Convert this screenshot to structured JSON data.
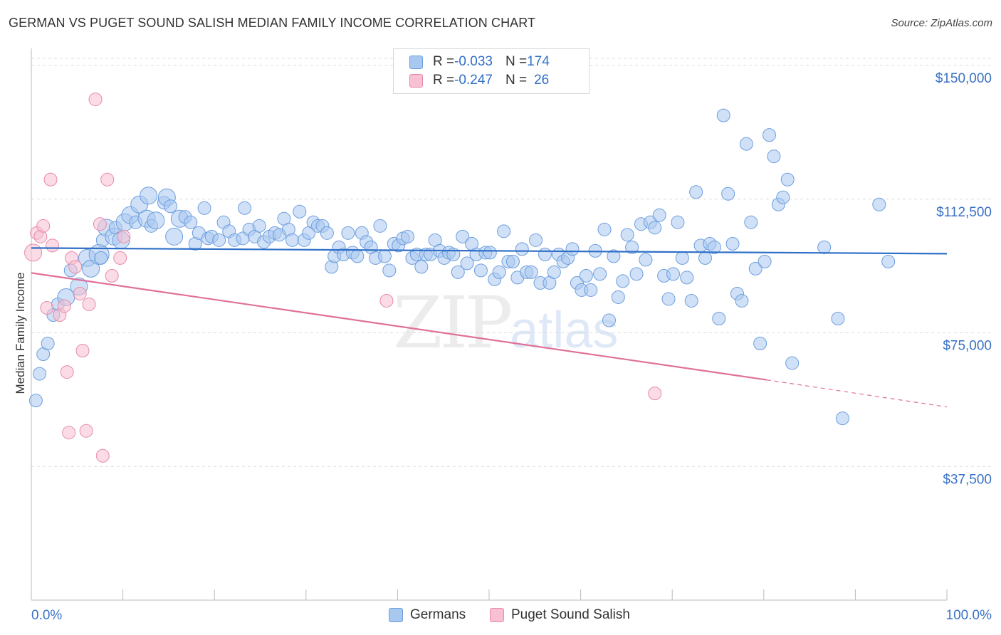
{
  "title": "GERMAN VS PUGET SOUND SALISH MEDIAN FAMILY INCOME CORRELATION CHART",
  "source": "Source: ZipAtlas.com",
  "watermark": {
    "zip": "ZIP",
    "atlas": "atlas"
  },
  "legend": {
    "rows": [
      {
        "r_label": "R = ",
        "r_value": "-0.033",
        "n_label": "N = ",
        "n_value": "174",
        "color": "#a9c8f0",
        "border": "#6d9ede"
      },
      {
        "r_label": "R = ",
        "r_value": "-0.247",
        "n_label": "N = ",
        "n_value": "26",
        "color": "#f8c0d2",
        "border": "#e68aa8"
      }
    ]
  },
  "bottom_legend": [
    {
      "label": "Germans",
      "color": "#a9c8f0",
      "border": "#6d9ede"
    },
    {
      "label": "Puget Sound Salish",
      "color": "#f8c0d2",
      "border": "#e68aa8"
    }
  ],
  "chart_data": {
    "type": "scatter",
    "title": "GERMAN VS PUGET SOUND SALISH MEDIAN FAMILY INCOME CORRELATION CHART",
    "xlabel": "",
    "ylabel": "Median Family Income",
    "xlim": [
      0,
      100
    ],
    "ylim": [
      0,
      153000
    ],
    "x_tick_labels": [
      "0.0%",
      "100.0%"
    ],
    "y_ticks": [
      37500,
      75000,
      112500,
      150000
    ],
    "y_tick_labels": [
      "$37,500",
      "$75,000",
      "$112,500",
      "$150,000"
    ],
    "grid": true,
    "legend_position": "top-center",
    "series": [
      {
        "name": "Germans",
        "color": "#6d9ede",
        "fill": "#a9c8f0",
        "trend": {
          "x": [
            0,
            100
          ],
          "y": [
            98800,
            97200
          ],
          "color": "#2f6fc7"
        },
        "points": [
          [
            0.5,
            56000,
            2
          ],
          [
            0.9,
            63500,
            2
          ],
          [
            1.3,
            69000,
            2
          ],
          [
            1.8,
            72000,
            2
          ],
          [
            2.4,
            80000,
            2
          ],
          [
            2.9,
            83000,
            2
          ],
          [
            3.8,
            85000,
            3
          ],
          [
            4.3,
            92500,
            2
          ],
          [
            5.2,
            88000,
            3
          ],
          [
            6.1,
            96000,
            3
          ],
          [
            6.5,
            93000,
            3
          ],
          [
            7.4,
            97000,
            4
          ],
          [
            7.6,
            96000,
            2
          ],
          [
            7.8,
            101000,
            2
          ],
          [
            8.2,
            104500,
            3
          ],
          [
            9.0,
            102000,
            3
          ],
          [
            9.2,
            104500,
            2
          ],
          [
            9.8,
            101000,
            3
          ],
          [
            10.2,
            106000,
            3
          ],
          [
            10.8,
            108000,
            3
          ],
          [
            11.4,
            106000,
            2
          ],
          [
            11.8,
            111000,
            3
          ],
          [
            12.6,
            107000,
            3
          ],
          [
            12.8,
            113500,
            3
          ],
          [
            13.1,
            105000,
            2
          ],
          [
            13.6,
            106500,
            3
          ],
          [
            14.5,
            111500,
            2
          ],
          [
            14.8,
            113000,
            3
          ],
          [
            15.2,
            110500,
            2
          ],
          [
            15.6,
            102000,
            3
          ],
          [
            16.2,
            107000,
            3
          ],
          [
            16.8,
            107500,
            2
          ],
          [
            17.4,
            106000,
            2
          ],
          [
            17.9,
            100000,
            2
          ],
          [
            18.3,
            103000,
            2
          ],
          [
            18.9,
            110000,
            2
          ],
          [
            19.3,
            101500,
            2
          ],
          [
            19.7,
            102000,
            2
          ],
          [
            20.5,
            101000,
            2
          ],
          [
            21.0,
            106000,
            2
          ],
          [
            21.6,
            103500,
            2
          ],
          [
            22.2,
            101000,
            2
          ],
          [
            23.1,
            101500,
            2
          ],
          [
            23.3,
            110000,
            2
          ],
          [
            23.8,
            104000,
            2
          ],
          [
            24.4,
            102000,
            2
          ],
          [
            24.9,
            105000,
            2
          ],
          [
            25.4,
            100500,
            2
          ],
          [
            26.0,
            102000,
            2
          ],
          [
            26.6,
            103000,
            2
          ],
          [
            27.1,
            102500,
            2
          ],
          [
            27.6,
            107000,
            2
          ],
          [
            28.1,
            104000,
            2
          ],
          [
            28.5,
            101000,
            2
          ],
          [
            29.3,
            109000,
            2
          ],
          [
            29.8,
            101000,
            2
          ],
          [
            30.3,
            103000,
            2
          ],
          [
            30.8,
            106000,
            2
          ],
          [
            31.3,
            105000,
            2
          ],
          [
            31.8,
            105000,
            2
          ],
          [
            32.3,
            103000,
            2
          ],
          [
            32.8,
            93500,
            2
          ],
          [
            33.1,
            96500,
            2
          ],
          [
            33.6,
            99000,
            2
          ],
          [
            34.1,
            97000,
            2
          ],
          [
            34.6,
            103000,
            2
          ],
          [
            35.1,
            97500,
            2
          ],
          [
            35.6,
            96500,
            2
          ],
          [
            36.1,
            103000,
            2
          ],
          [
            36.6,
            100500,
            2
          ],
          [
            37.1,
            99000,
            2
          ],
          [
            37.6,
            96000,
            2
          ],
          [
            38.1,
            105000,
            2
          ],
          [
            38.6,
            96500,
            2
          ],
          [
            39.1,
            92500,
            2
          ],
          [
            39.6,
            100000,
            2
          ],
          [
            40.1,
            99500,
            2
          ],
          [
            40.6,
            101500,
            2
          ],
          [
            41.1,
            102000,
            2
          ],
          [
            41.6,
            96000,
            2
          ],
          [
            42.1,
            97000,
            2
          ],
          [
            42.6,
            93500,
            2
          ],
          [
            43.1,
            97000,
            2
          ],
          [
            43.6,
            97000,
            2
          ],
          [
            44.1,
            101000,
            2
          ],
          [
            44.6,
            98000,
            2
          ],
          [
            45.1,
            96000,
            2
          ],
          [
            45.6,
            97500,
            2
          ],
          [
            46.1,
            97000,
            2
          ],
          [
            46.6,
            92000,
            2
          ],
          [
            47.1,
            102000,
            2
          ],
          [
            47.6,
            94500,
            2
          ],
          [
            48.1,
            100000,
            2
          ],
          [
            48.6,
            97000,
            2
          ],
          [
            49.1,
            92500,
            2
          ],
          [
            49.6,
            97500,
            2
          ],
          [
            50.1,
            97500,
            2
          ],
          [
            50.6,
            90000,
            2
          ],
          [
            51.1,
            92000,
            2
          ],
          [
            51.6,
            103500,
            2
          ],
          [
            52.1,
            95000,
            2
          ],
          [
            52.6,
            95000,
            2
          ],
          [
            53.1,
            90500,
            2
          ],
          [
            53.6,
            98500,
            2
          ],
          [
            54.1,
            92000,
            2
          ],
          [
            54.6,
            92000,
            2
          ],
          [
            55.1,
            101000,
            2
          ],
          [
            55.6,
            89000,
            2
          ],
          [
            56.1,
            97000,
            2
          ],
          [
            56.6,
            89000,
            2
          ],
          [
            57.1,
            92000,
            2
          ],
          [
            57.6,
            97000,
            2
          ],
          [
            58.1,
            95000,
            2
          ],
          [
            58.6,
            96000,
            2
          ],
          [
            59.1,
            98500,
            2
          ],
          [
            59.6,
            89000,
            2
          ],
          [
            60.1,
            87000,
            2
          ],
          [
            60.6,
            91000,
            2
          ],
          [
            61.1,
            87000,
            2
          ],
          [
            61.6,
            98000,
            2
          ],
          [
            62.1,
            91500,
            2
          ],
          [
            62.6,
            104000,
            2
          ],
          [
            63.1,
            78500,
            2
          ],
          [
            63.6,
            96500,
            2
          ],
          [
            64.1,
            85000,
            2
          ],
          [
            64.6,
            89500,
            2
          ],
          [
            65.1,
            102500,
            2
          ],
          [
            65.6,
            99000,
            2
          ],
          [
            66.1,
            91500,
            2
          ],
          [
            66.6,
            105500,
            2
          ],
          [
            67.1,
            95500,
            2
          ],
          [
            67.6,
            106000,
            2
          ],
          [
            68.1,
            104500,
            2
          ],
          [
            68.6,
            108000,
            2
          ],
          [
            69.1,
            91000,
            2
          ],
          [
            69.6,
            84500,
            2
          ],
          [
            70.1,
            91500,
            2
          ],
          [
            70.6,
            106000,
            2
          ],
          [
            71.1,
            96000,
            2
          ],
          [
            71.6,
            90500,
            2
          ],
          [
            72.1,
            84000,
            2
          ],
          [
            72.6,
            114500,
            2
          ],
          [
            73.1,
            99500,
            2
          ],
          [
            73.6,
            96000,
            2
          ],
          [
            74.1,
            100000,
            2
          ],
          [
            74.6,
            99000,
            2
          ],
          [
            75.1,
            79000,
            2
          ],
          [
            75.6,
            136000,
            2
          ],
          [
            76.1,
            114000,
            2
          ],
          [
            76.6,
            100000,
            2
          ],
          [
            77.1,
            86000,
            2
          ],
          [
            77.6,
            84000,
            2
          ],
          [
            78.1,
            128000,
            2
          ],
          [
            78.6,
            106000,
            2
          ],
          [
            79.1,
            93000,
            2
          ],
          [
            79.6,
            72000,
            2
          ],
          [
            80.1,
            95000,
            2
          ],
          [
            80.6,
            130500,
            2
          ],
          [
            81.1,
            124500,
            2
          ],
          [
            81.6,
            111000,
            2
          ],
          [
            82.1,
            113000,
            2
          ],
          [
            82.6,
            118000,
            2
          ],
          [
            83.1,
            66500,
            2
          ],
          [
            86.6,
            99000,
            2
          ],
          [
            88.1,
            79000,
            2
          ],
          [
            88.6,
            51000,
            2
          ],
          [
            92.6,
            111000,
            2
          ],
          [
            93.6,
            95000,
            2
          ]
        ]
      },
      {
        "name": "Puget Sound Salish",
        "color": "#e68aa8",
        "fill": "#f8c0d2",
        "trend": {
          "x": [
            0,
            80.3
          ],
          "y": [
            91800,
            61800
          ],
          "color": "#e0709a",
          "dashed_extension_to": [
            100,
            54200
          ]
        },
        "points": [
          [
            0.2,
            97500,
            3
          ],
          [
            0.6,
            103000,
            2
          ],
          [
            1.0,
            102000,
            2
          ],
          [
            1.3,
            105000,
            2
          ],
          [
            1.7,
            82000,
            2
          ],
          [
            2.1,
            118000,
            2
          ],
          [
            2.3,
            99500,
            2
          ],
          [
            3.1,
            80000,
            2
          ],
          [
            3.6,
            82500,
            2
          ],
          [
            3.9,
            64000,
            2
          ],
          [
            4.1,
            47000,
            2
          ],
          [
            4.4,
            96000,
            2
          ],
          [
            4.8,
            93500,
            2
          ],
          [
            5.3,
            86000,
            2
          ],
          [
            5.6,
            70000,
            2
          ],
          [
            6.0,
            47500,
            2
          ],
          [
            6.3,
            83000,
            2
          ],
          [
            7.0,
            140500,
            2
          ],
          [
            7.5,
            105500,
            2
          ],
          [
            7.8,
            40500,
            2
          ],
          [
            8.3,
            118000,
            2
          ],
          [
            8.8,
            91000,
            2
          ],
          [
            9.7,
            96000,
            2
          ],
          [
            10.1,
            102000,
            2
          ],
          [
            38.8,
            84000,
            2
          ],
          [
            68.1,
            58000,
            2
          ]
        ]
      }
    ]
  }
}
